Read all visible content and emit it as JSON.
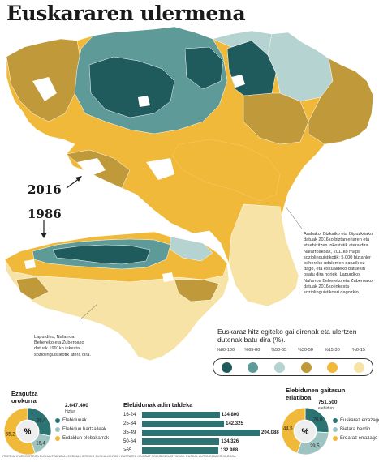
{
  "title": "Euskararen ulermena",
  "labels": {
    "year_2016": "2016",
    "year_1986": "1986"
  },
  "notes": {
    "right": [
      "Arabako, Bizkaiko eta Gipuzkoako",
      "datuak 2016ko biztanleriaren eta",
      "etxebizitzen inkestatik atera dira.",
      "Nafarroakoak, 2011ko mapa",
      "soziolinguistikotik; 5.000 biztanler",
      "beherako udalerrien daturik ez",
      "dago, eta eskualdeko datuekin",
      "osatu dira horiek. Lapurdiko,",
      "Nafarroa Behereko eta Zuberoako",
      "datuak 2016ko inkesta",
      "soziolinguistikoari dagozkio."
    ],
    "left": [
      "Lapurdiko, Nafarroa",
      "Behereko eta Zuberoako",
      "datuak 1991ko inkesta",
      "soziolinguistikotik atera dira."
    ]
  },
  "legend": {
    "title": "Euskaraz hitz egiteko gai direnak eta ulertzen dutenak batu dira (%).",
    "items": [
      {
        "label": "%80-100",
        "color": "#1f5a5c"
      },
      {
        "label": "%65-80",
        "color": "#5e9a98"
      },
      {
        "label": "%50-65",
        "color": "#b5d3d1"
      },
      {
        "label": "%30-50",
        "color": "#c09a3a"
      },
      {
        "label": "%15-30",
        "color": "#f0b93a"
      },
      {
        "label": "%0-15",
        "color": "#f7e3a6"
      }
    ]
  },
  "ezagutza": {
    "title": "Ezagutza orokorra",
    "total": "2.647.400",
    "total_label": "hiztun",
    "center": "%",
    "slices": [
      {
        "label": "Elebidunak",
        "value": 28.4,
        "display": "28,4",
        "color": "#2c7373"
      },
      {
        "label": "Elebidun hartzaileak",
        "value": 16.4,
        "display": "16,4",
        "color": "#9ec4c2"
      },
      {
        "label": "Erdaldun elebakarrak",
        "value": 55.2,
        "display": "55,2",
        "color": "#f0b93a"
      }
    ]
  },
  "age_chart": {
    "title": "Elebidunak adin taldeka",
    "type": "bar",
    "categories": [
      "16-24",
      "25-34",
      "35-49",
      "50-64",
      ">65"
    ],
    "values": [
      134800,
      142325,
      204088,
      134326,
      132988
    ],
    "value_labels": [
      "134.800",
      "142.325",
      "204.088",
      "134.326",
      "132.988"
    ],
    "color": "#2c7373"
  },
  "gaitasun": {
    "title": "Elebidunen gaitasun erlatiboa",
    "total": "751.500",
    "total_label": "elebidun",
    "center": "%",
    "slices": [
      {
        "label": "Euskaraz errazago",
        "value": 26.0,
        "display": "26,0",
        "color": "#2c7373"
      },
      {
        "label": "Bietara berdin",
        "value": 29.5,
        "display": "29,5",
        "color": "#9ec4c2"
      },
      {
        "label": "Erdaraz errazago",
        "value": 44.5,
        "display": "44,5",
        "color": "#f0b93a"
      }
    ]
  },
  "footer": "ITURRIA: EMREGISTROA EUSKALTZAINDIA / EUSKAL HERRIKO EUSKALGINTZA / EUSTATEK HAINBAT SOZIOLINGUISTIKOAK. EUSKAL AUTONOMIA ERKIDEGOA"
}
